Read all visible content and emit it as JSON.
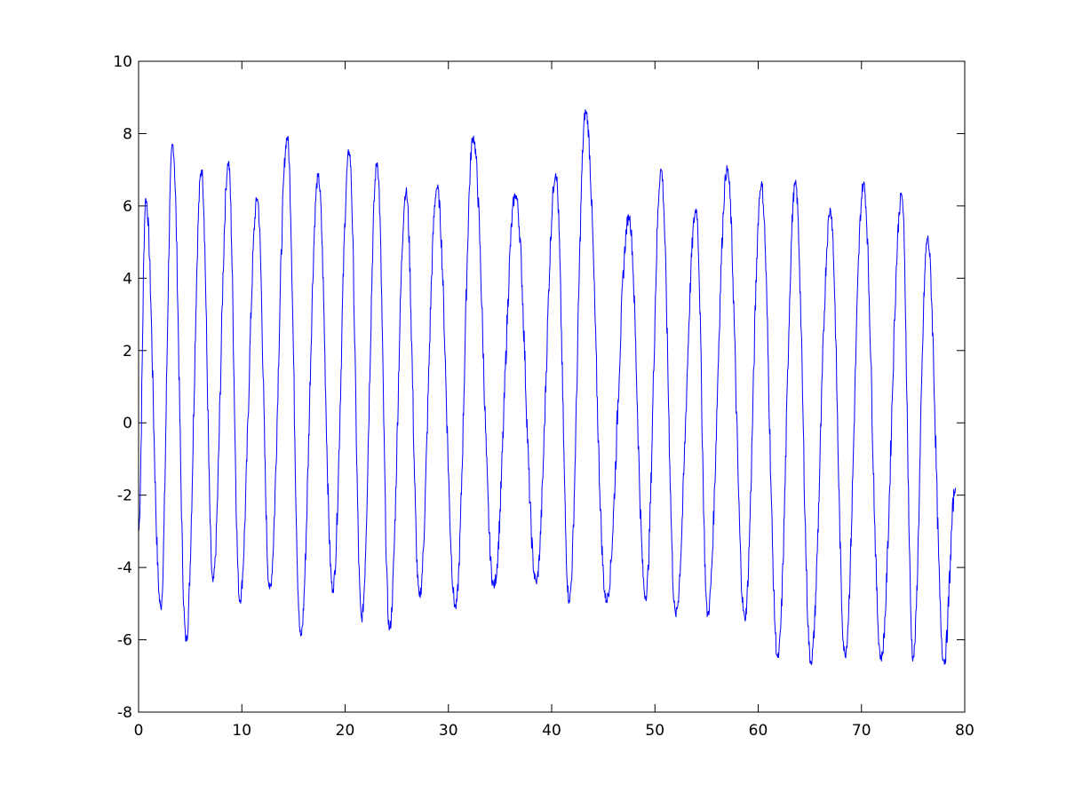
{
  "chart_data": {
    "type": "line",
    "title": "",
    "xlabel": "",
    "ylabel": "",
    "xlim": [
      0,
      80
    ],
    "ylim": [
      -8,
      10
    ],
    "grid": false,
    "x_ticks": [
      "0",
      "10",
      "20",
      "30",
      "40",
      "50",
      "60",
      "70",
      "80"
    ],
    "y_ticks": [
      "-8",
      "-6",
      "-4",
      "-2",
      "0",
      "2",
      "4",
      "6",
      "8",
      "10"
    ],
    "line_color": "#0000ff",
    "series": [
      {
        "x": [
          0,
          0.7,
          2.15,
          3.3,
          4.6,
          6.1,
          7.2,
          8.7,
          9.8,
          11.5,
          12.7,
          14.4,
          15.7,
          17.4,
          18.8,
          20.4,
          21.6,
          23.1,
          24.3,
          25.9,
          27.2,
          28.9,
          30.7,
          32.4,
          34.4,
          36.5,
          38.5,
          40.4,
          41.7,
          43.3,
          45.3,
          47.5,
          49.1,
          50.6,
          52.0,
          54.0,
          55.1,
          57.0,
          58.7,
          60.3,
          61.9,
          63.6,
          65.1,
          67.0,
          68.4,
          70.2,
          71.9,
          73.9,
          75.0,
          76.4,
          78.0,
          79.1
        ],
        "y": [
          -3,
          6.2,
          -5.1,
          7.7,
          -6.0,
          7.0,
          -4.4,
          7.2,
          -4.9,
          6.2,
          -4.6,
          7.9,
          -5.9,
          6.8,
          -4.6,
          7.5,
          -5.4,
          7.2,
          -5.7,
          6.4,
          -4.8,
          6.5,
          -5.1,
          7.9,
          -4.5,
          6.3,
          -4.4,
          6.9,
          -4.9,
          8.6,
          -4.9,
          5.7,
          -4.8,
          7.0,
          -5.3,
          5.9,
          -5.3,
          7.0,
          -5.4,
          6.6,
          -6.5,
          6.6,
          -6.6,
          5.9,
          -6.4,
          6.6,
          -6.5,
          6.3,
          -6.5,
          5.1,
          -6.6,
          -1.8
        ]
      }
    ]
  }
}
